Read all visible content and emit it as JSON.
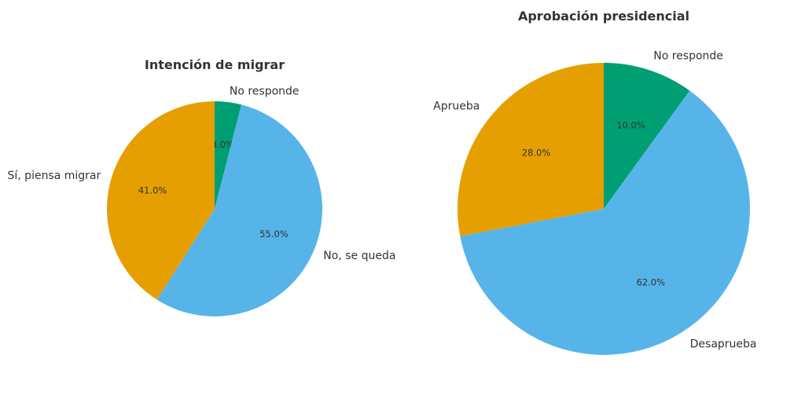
{
  "chart_data": [
    {
      "type": "pie",
      "title": "Intención de migrar",
      "categories": [
        "No responde",
        "No, se queda",
        "Sí, piensa migrar"
      ],
      "values": [
        4.0,
        55.0,
        41.0
      ],
      "value_labels": [
        "4.0%",
        "55.0%",
        "41.0%"
      ],
      "colors": [
        "#009e73",
        "#56b4e9",
        "#e69f00"
      ],
      "start": "top",
      "direction": "clockwise"
    },
    {
      "type": "pie",
      "title": "Aprobación presidencial",
      "categories": [
        "No responde",
        "Desaprueba",
        "Aprueba"
      ],
      "values": [
        10.0,
        62.0,
        28.0
      ],
      "value_labels": [
        "10.0%",
        "62.0%",
        "28.0%"
      ],
      "colors": [
        "#009e73",
        "#56b4e9",
        "#e69f00"
      ],
      "start": "top",
      "direction": "clockwise"
    }
  ]
}
